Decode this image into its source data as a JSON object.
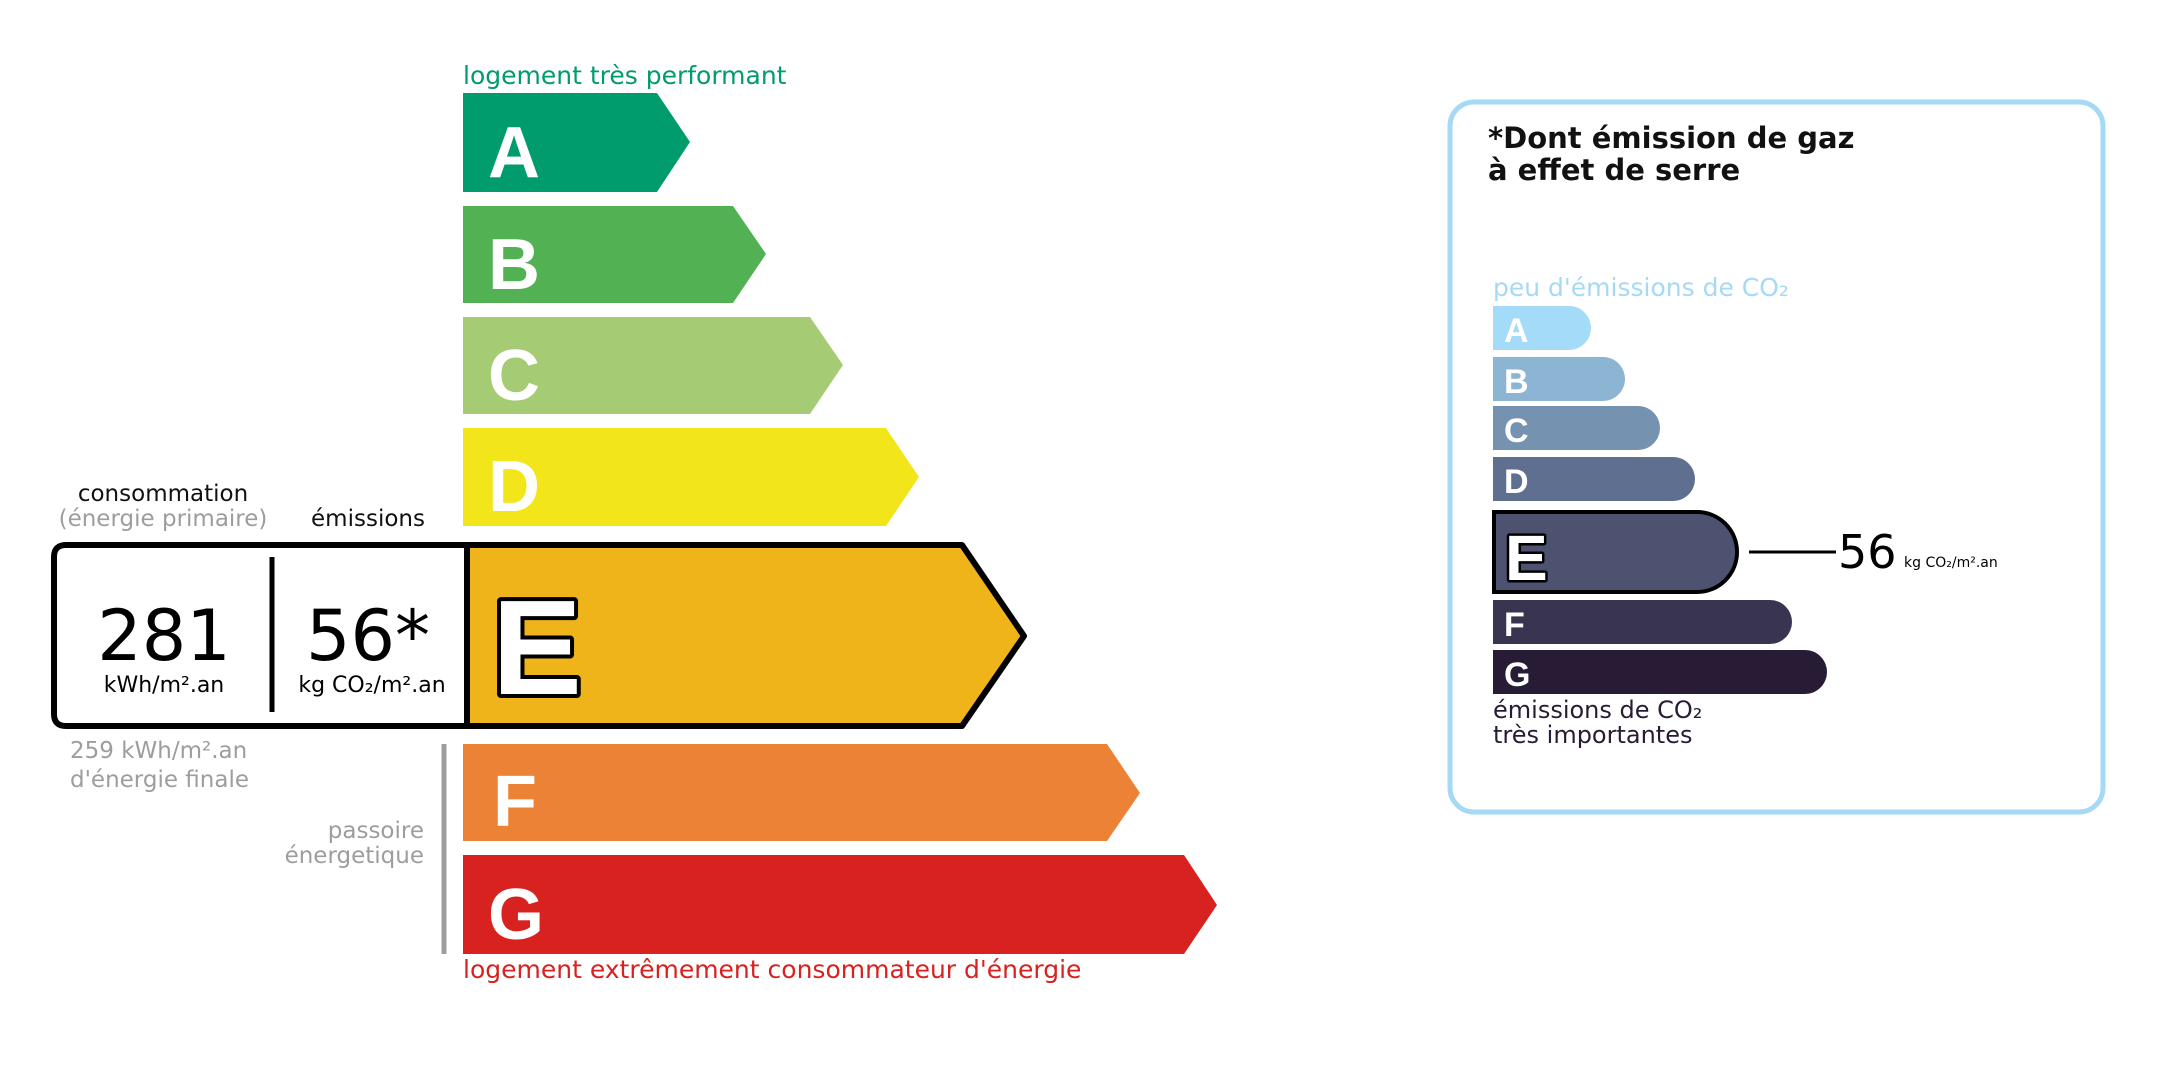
{
  "dpe": {
    "top_label": "logement très performant",
    "bottom_label": "logement extrêmement consommateur d'énergie",
    "classes": [
      {
        "letter": "A",
        "color": "#009c6d"
      },
      {
        "letter": "B",
        "color": "#52b153"
      },
      {
        "letter": "C",
        "color": "#a5cc74"
      },
      {
        "letter": "D",
        "color": "#f2e51a"
      },
      {
        "letter": "E",
        "color": "#f0b41b"
      },
      {
        "letter": "F",
        "color": "#eb8235"
      },
      {
        "letter": "G",
        "color": "#d7221f"
      }
    ],
    "current_class": "E",
    "consumption_label": "consommation",
    "consumption_sublabel": "(énergie primaire)",
    "emissions_label": "émissions",
    "consumption_value": "281",
    "consumption_unit": "kWh/m².an",
    "emissions_value": "56*",
    "emissions_unit": "kg CO₂/m².an",
    "final_energy_value": "259 kWh/m².an",
    "final_energy_label": "d'énergie finale",
    "passoire_line1": "passoire",
    "passoire_line2": "énergetique"
  },
  "ges": {
    "title_line1": "*Dont émission de gaz",
    "title_line2": "à effet de serre",
    "top_label": "peu d'émissions de CO₂",
    "bottom_line1": "émissions de CO₂",
    "bottom_line2": "très importantes",
    "border_color": "#a6d9f5",
    "classes": [
      {
        "letter": "A",
        "color": "#a4dbf8"
      },
      {
        "letter": "B",
        "color": "#8cb4d3"
      },
      {
        "letter": "C",
        "color": "#7692b1"
      },
      {
        "letter": "D",
        "color": "#5e6f8f"
      },
      {
        "letter": "E",
        "color": "#4d5271"
      },
      {
        "letter": "F",
        "color": "#393551"
      },
      {
        "letter": "G",
        "color": "#281b35"
      }
    ],
    "current_class": "E",
    "value": "56",
    "unit": "kg CO₂/m².an"
  }
}
